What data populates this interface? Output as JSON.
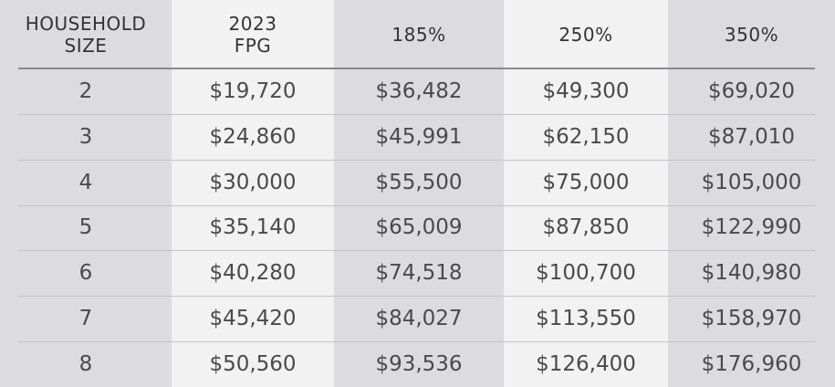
{
  "table": {
    "header": [
      "HOUSEHOLD SIZE",
      "2023 FPG",
      "185%",
      "250%",
      "350%"
    ],
    "rows": [
      [
        "2",
        "$19,720",
        "$36,482",
        "$49,300",
        "$69,020"
      ],
      [
        "3",
        "$24,860",
        "$45,991",
        "$62,150",
        "$87,010"
      ],
      [
        "4",
        "$30,000",
        "$55,500",
        "$75,000",
        "$105,000"
      ],
      [
        "5",
        "$35,140",
        "$65,009",
        "$87,850",
        "$122,990"
      ],
      [
        "6",
        "$40,280",
        "$74,518",
        "$100,700",
        "$140,980"
      ],
      [
        "7",
        "$45,420",
        "$84,027",
        "$113,550",
        "$158,970"
      ],
      [
        "8",
        "$50,560",
        "$93,536",
        "$126,400",
        "$176,960"
      ]
    ]
  }
}
